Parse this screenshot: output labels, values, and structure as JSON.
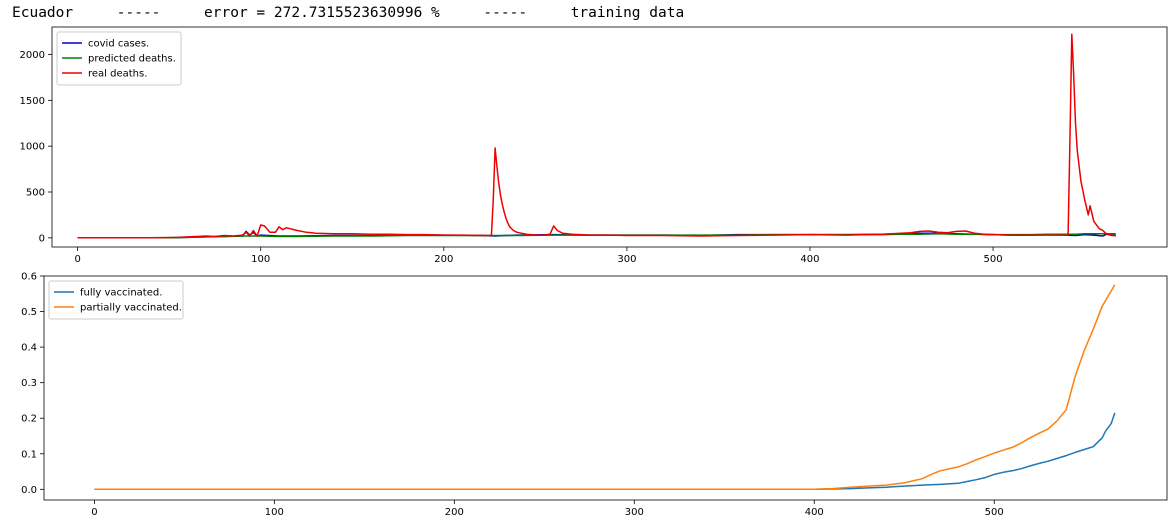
{
  "header": {
    "title": "Ecuador     -----     error = 272.7315523630996 %     -----     training data"
  },
  "chart_data": [
    {
      "type": "line",
      "xlim": [
        -14,
        595
      ],
      "ylim": [
        -100,
        2300
      ],
      "xticks": [
        0,
        100,
        200,
        300,
        400,
        500
      ],
      "yticks": [
        0,
        500,
        1000,
        1500,
        2000
      ],
      "grid": false,
      "legend_position": "upper-left",
      "series": [
        {
          "name": "covid cases.",
          "color": "#0000cc",
          "x": [
            0,
            50,
            60,
            70,
            80,
            90,
            92,
            94,
            96,
            98,
            100,
            110,
            120,
            140,
            160,
            180,
            200,
            220,
            228,
            240,
            260,
            280,
            300,
            320,
            340,
            360,
            380,
            400,
            420,
            440,
            450,
            460,
            470,
            480,
            490,
            500,
            510,
            520,
            530,
            540,
            545,
            550,
            555,
            560,
            562,
            565,
            567
          ],
          "y": [
            0,
            0,
            5,
            10,
            15,
            20,
            70,
            30,
            60,
            20,
            30,
            20,
            20,
            25,
            25,
            30,
            30,
            25,
            20,
            30,
            35,
            30,
            30,
            30,
            25,
            35,
            35,
            35,
            35,
            40,
            45,
            50,
            50,
            45,
            40,
            35,
            30,
            30,
            35,
            30,
            25,
            35,
            30,
            20,
            40,
            25,
            30
          ]
        },
        {
          "name": "predicted deaths.",
          "color": "#008000",
          "x": [
            0,
            50,
            60,
            70,
            80,
            90,
            100,
            110,
            120,
            140,
            160,
            180,
            200,
            220,
            228,
            240,
            260,
            280,
            300,
            320,
            340,
            360,
            380,
            400,
            420,
            440,
            450,
            460,
            470,
            480,
            490,
            500,
            510,
            520,
            530,
            540,
            545,
            550,
            555,
            560,
            567
          ],
          "y": [
            0,
            0,
            5,
            10,
            15,
            20,
            20,
            15,
            15,
            20,
            20,
            25,
            25,
            25,
            25,
            25,
            30,
            30,
            30,
            30,
            30,
            30,
            35,
            35,
            35,
            35,
            40,
            40,
            45,
            40,
            40,
            35,
            35,
            35,
            40,
            40,
            40,
            45,
            45,
            45,
            45
          ]
        },
        {
          "name": "real deaths.",
          "color": "#ee0000",
          "x": [
            0,
            40,
            55,
            60,
            65,
            70,
            75,
            80,
            85,
            90,
            92,
            94,
            96,
            98,
            100,
            102,
            105,
            108,
            110,
            112,
            114,
            116,
            118,
            120,
            125,
            130,
            140,
            150,
            160,
            170,
            180,
            190,
            200,
            210,
            220,
            226,
            227,
            228,
            229,
            230,
            231,
            232,
            233,
            234,
            235,
            236,
            238,
            240,
            245,
            250,
            255,
            258,
            260,
            262,
            265,
            270,
            280,
            290,
            300,
            310,
            320,
            340,
            360,
            380,
            400,
            420,
            440,
            450,
            455,
            460,
            465,
            470,
            475,
            480,
            485,
            490,
            495,
            500,
            510,
            520,
            530,
            541,
            542,
            543,
            544,
            545,
            546,
            548,
            550,
            552,
            553,
            555,
            558,
            560,
            562,
            565,
            567
          ],
          "y": [
            0,
            0,
            5,
            10,
            15,
            20,
            15,
            25,
            20,
            30,
            60,
            20,
            80,
            20,
            140,
            130,
            60,
            60,
            120,
            90,
            110,
            100,
            90,
            80,
            60,
            50,
            45,
            45,
            40,
            40,
            35,
            35,
            30,
            30,
            25,
            25,
            400,
            980,
            780,
            600,
            460,
            360,
            280,
            210,
            160,
            120,
            80,
            60,
            40,
            30,
            30,
            40,
            130,
            80,
            50,
            40,
            30,
            30,
            25,
            25,
            25,
            20,
            25,
            30,
            35,
            30,
            40,
            50,
            55,
            70,
            75,
            60,
            55,
            70,
            75,
            50,
            40,
            35,
            30,
            30,
            30,
            30,
            1100,
            2220,
            1800,
            1250,
            950,
            620,
            420,
            250,
            350,
            180,
            100,
            80,
            40,
            30,
            20
          ]
        }
      ]
    },
    {
      "type": "line",
      "xlim": [
        -28,
        596
      ],
      "ylim": [
        -0.03,
        0.6
      ],
      "xticks": [
        0,
        100,
        200,
        300,
        400,
        500
      ],
      "yticks": [
        0.0,
        0.1,
        0.2,
        0.3,
        0.4,
        0.5,
        0.6
      ],
      "ytick_labels": [
        "0.0",
        "0.1",
        "0.2",
        "0.3",
        "0.4",
        "0.5",
        "0.6"
      ],
      "grid": false,
      "legend_position": "upper-left",
      "series": [
        {
          "name": "fully vaccinated.",
          "color": "#1f77b4",
          "x": [
            0,
            400,
            410,
            420,
            430,
            440,
            450,
            460,
            470,
            480,
            485,
            490,
            495,
            500,
            505,
            510,
            515,
            520,
            525,
            530,
            535,
            540,
            545,
            550,
            555,
            560,
            562,
            565,
            567
          ],
          "y": [
            0,
            0,
            0.001,
            0.002,
            0.004,
            0.006,
            0.009,
            0.012,
            0.014,
            0.017,
            0.022,
            0.027,
            0.033,
            0.042,
            0.048,
            0.052,
            0.058,
            0.066,
            0.073,
            0.079,
            0.087,
            0.095,
            0.104,
            0.112,
            0.12,
            0.145,
            0.165,
            0.185,
            0.215
          ]
        },
        {
          "name": "partially vaccinated.",
          "color": "#ff7f0e",
          "x": [
            0,
            400,
            410,
            420,
            430,
            440,
            450,
            460,
            465,
            470,
            480,
            485,
            490,
            495,
            500,
            505,
            510,
            515,
            520,
            525,
            530,
            535,
            540,
            545,
            550,
            555,
            560,
            565,
            567
          ],
          "y": [
            0,
            0,
            0.002,
            0.006,
            0.009,
            0.012,
            0.018,
            0.03,
            0.042,
            0.052,
            0.063,
            0.072,
            0.083,
            0.092,
            0.102,
            0.11,
            0.118,
            0.13,
            0.145,
            0.158,
            0.17,
            0.193,
            0.224,
            0.318,
            0.39,
            0.45,
            0.515,
            0.558,
            0.575
          ]
        }
      ]
    }
  ]
}
